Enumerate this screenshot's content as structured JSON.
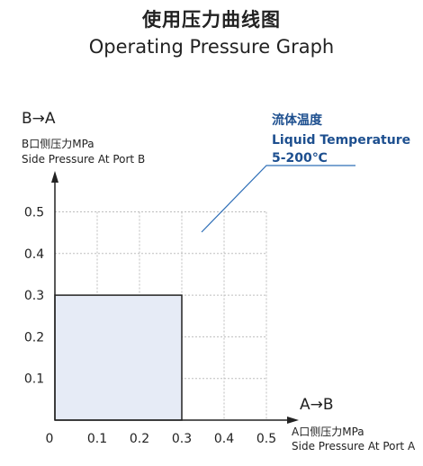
{
  "title_zh": "使用压力曲线图",
  "title_en": "Operating Pressure Graph",
  "chart_data": {
    "type": "area",
    "xlabel_direction": "A→B",
    "xlabel_zh": "A口侧压力MPa",
    "xlabel_en": "Side Pressure At Port A",
    "ylabel_direction": "B→A",
    "ylabel_zh": "B口侧压力MPa",
    "ylabel_en": "Side Pressure At Port B",
    "x_ticks": [
      "0",
      "0.1",
      "0.2",
      "0.3",
      "0.4",
      "0.5"
    ],
    "y_ticks": [
      "0.1",
      "0.2",
      "0.3",
      "0.4",
      "0.5"
    ],
    "xlim": [
      0,
      0.5
    ],
    "ylim": [
      0,
      0.5
    ],
    "grid": true,
    "region": {
      "x": [
        0,
        0.3
      ],
      "y": [
        0,
        0.3
      ]
    },
    "annotation": {
      "zh": "流体温度",
      "en": "Liquid Temperature",
      "range": "5-200℃"
    },
    "colors": {
      "region_fill": "#e6ebf6",
      "annotation_text": "#1d4f8f",
      "leader_line": "#2f6fb7",
      "axis": "#222222",
      "grid": "#bdbdbd"
    }
  }
}
